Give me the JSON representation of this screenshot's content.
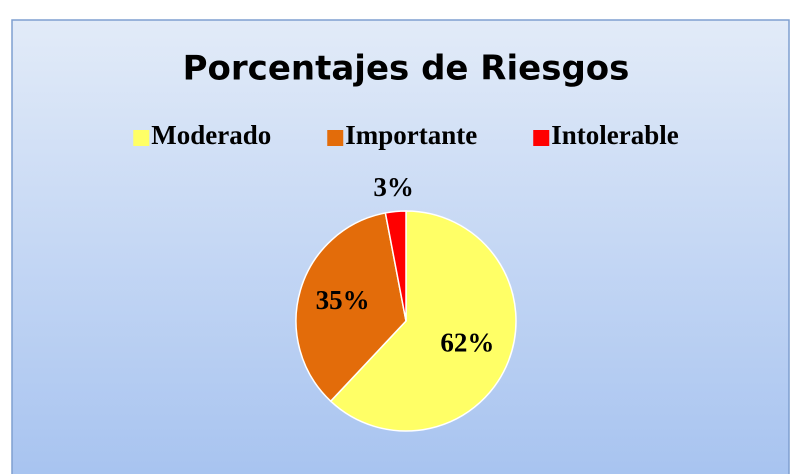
{
  "chart_data": {
    "type": "pie",
    "title": "Porcentajes de Riesgos",
    "categories": [
      "Moderado",
      "Importante",
      "Intolerable"
    ],
    "values": [
      62,
      35,
      3
    ],
    "value_labels": [
      "62%",
      "35%",
      "3%"
    ],
    "colors": [
      "#ffff66",
      "#e36c0a",
      "#ff0000"
    ],
    "legend": "top"
  }
}
